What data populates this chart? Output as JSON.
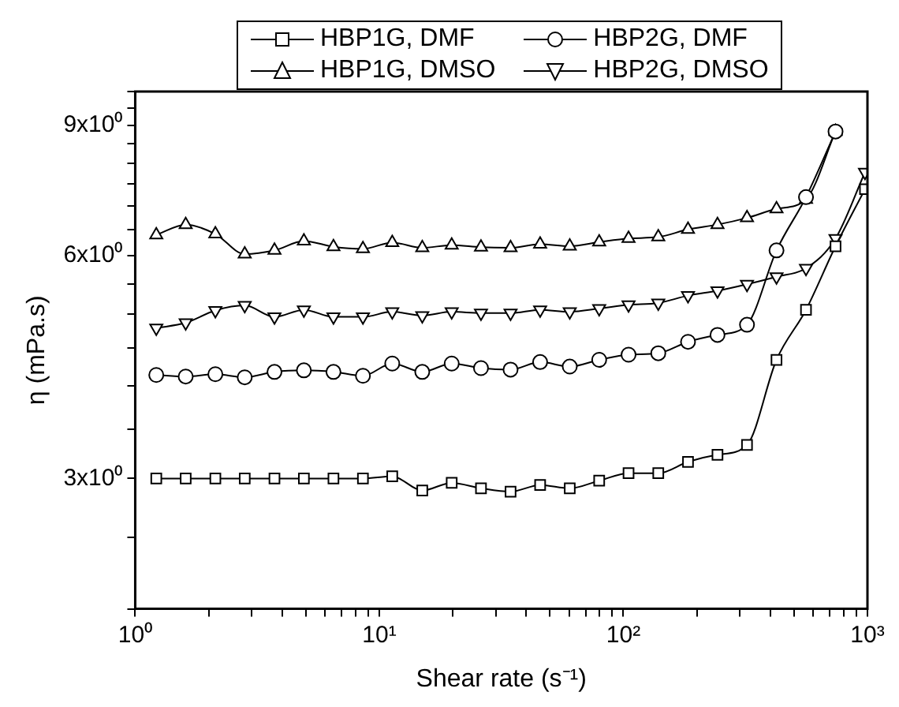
{
  "chart_data": {
    "type": "line",
    "xlabel": "Shear rate (s⁻¹)",
    "ylabel": "η (mPa.s)",
    "log": "xy",
    "grid": false,
    "legend": "top",
    "line_style": "solid",
    "x": [
      1.22,
      1.61,
      2.13,
      2.81,
      3.72,
      4.91,
      6.49,
      8.57,
      11.3,
      15.0,
      19.8,
      26.1,
      34.5,
      45.6,
      60.3,
      79.6,
      105,
      139,
      184,
      243,
      321,
      424,
      560,
      740,
      977
    ],
    "xlim": [
      1,
      1000
    ],
    "ylim": [
      2,
      10
    ],
    "xticks": [
      {
        "value": 1,
        "label": "10⁰"
      },
      {
        "value": 2,
        "label": null
      },
      {
        "value": 3,
        "label": null
      },
      {
        "value": 4,
        "label": null
      },
      {
        "value": 5,
        "label": null
      },
      {
        "value": 6,
        "label": null
      },
      {
        "value": 7,
        "label": null
      },
      {
        "value": 8,
        "label": null
      },
      {
        "value": 9,
        "label": null
      },
      {
        "value": 10,
        "label": "10¹"
      },
      {
        "value": 20,
        "label": null
      },
      {
        "value": 30,
        "label": null
      },
      {
        "value": 40,
        "label": null
      },
      {
        "value": 50,
        "label": null
      },
      {
        "value": 60,
        "label": null
      },
      {
        "value": 70,
        "label": null
      },
      {
        "value": 80,
        "label": null
      },
      {
        "value": 90,
        "label": null
      },
      {
        "value": 100,
        "label": "10²"
      },
      {
        "value": 200,
        "label": null
      },
      {
        "value": 300,
        "label": null
      },
      {
        "value": 400,
        "label": null
      },
      {
        "value": 500,
        "label": null
      },
      {
        "value": 600,
        "label": null
      },
      {
        "value": 700,
        "label": null
      },
      {
        "value": 800,
        "label": null
      },
      {
        "value": 900,
        "label": null
      },
      {
        "value": 1000,
        "label": "10³"
      }
    ],
    "yticks": [
      {
        "value": 2,
        "label": null
      },
      {
        "value": 2.5,
        "label": null
      },
      {
        "value": 3,
        "label": "3x10⁰"
      },
      {
        "value": 3.5,
        "label": null
      },
      {
        "value": 4,
        "label": null
      },
      {
        "value": 4.5,
        "label": null
      },
      {
        "value": 5,
        "label": null
      },
      {
        "value": 5.5,
        "label": null
      },
      {
        "value": 6,
        "label": "6x10⁰"
      },
      {
        "value": 6.5,
        "label": null
      },
      {
        "value": 7,
        "label": null
      },
      {
        "value": 7.5,
        "label": null
      },
      {
        "value": 8,
        "label": null
      },
      {
        "value": 8.5,
        "label": null
      },
      {
        "value": 9,
        "label": "9x10⁰"
      },
      {
        "value": 9.5,
        "label": null
      },
      {
        "value": 10,
        "label": null
      }
    ],
    "series": [
      {
        "name": "HBP1G, DMF",
        "color": "#000000",
        "marker": "square",
        "values": [
          3.0,
          3.0,
          3.0,
          3.0,
          3.0,
          3.0,
          3.0,
          3.0,
          3.02,
          2.89,
          2.96,
          2.91,
          2.88,
          2.94,
          2.91,
          2.98,
          3.05,
          3.05,
          3.16,
          3.23,
          3.33,
          4.34,
          5.07,
          6.18,
          7.38
        ]
      },
      {
        "name": "HBP2G, DMF",
        "color": "#000000",
        "marker": "circle",
        "values": [
          4.14,
          4.12,
          4.15,
          4.11,
          4.18,
          4.2,
          4.18,
          4.13,
          4.29,
          4.18,
          4.29,
          4.23,
          4.21,
          4.31,
          4.25,
          4.34,
          4.41,
          4.43,
          4.59,
          4.69,
          4.84,
          6.1,
          7.2,
          8.83,
          null
        ]
      },
      {
        "name": "HBP1G, DMSO",
        "color": "#000000",
        "marker": "triangle",
        "values": [
          6.4,
          6.61,
          6.42,
          6.03,
          6.1,
          6.28,
          6.17,
          6.13,
          6.25,
          6.15,
          6.2,
          6.16,
          6.15,
          6.22,
          6.18,
          6.26,
          6.33,
          6.36,
          6.51,
          6.61,
          6.75,
          6.94,
          7.15,
          8.83,
          null
        ]
      },
      {
        "name": "HBP2G, DMSO",
        "color": "#000000",
        "marker": "triangle-down",
        "values": [
          4.79,
          4.87,
          5.06,
          5.14,
          4.96,
          5.07,
          4.96,
          4.96,
          5.04,
          4.98,
          5.04,
          5.02,
          5.02,
          5.07,
          5.04,
          5.09,
          5.15,
          5.18,
          5.3,
          5.38,
          5.49,
          5.62,
          5.77,
          6.33,
          7.78
        ]
      }
    ]
  }
}
